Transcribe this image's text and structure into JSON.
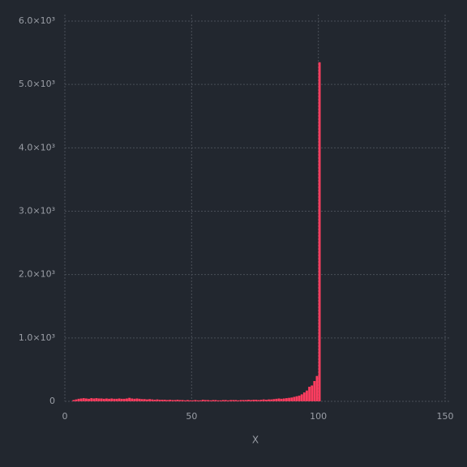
{
  "chart_data": {
    "type": "histogram",
    "x_label": "X",
    "color": "#ff3d5f",
    "bins": [
      3,
      4,
      5,
      6,
      7,
      8,
      9,
      10,
      11,
      12,
      13,
      14,
      15,
      16,
      17,
      18,
      19,
      20,
      21,
      22,
      23,
      24,
      25,
      26,
      27,
      28,
      29,
      30,
      31,
      32,
      33,
      34,
      35,
      36,
      37,
      38,
      39,
      40,
      41,
      42,
      43,
      44,
      45,
      46,
      47,
      48,
      49,
      50,
      51,
      52,
      53,
      54,
      55,
      56,
      57,
      58,
      59,
      60,
      61,
      62,
      63,
      64,
      65,
      66,
      67,
      68,
      69,
      70,
      71,
      72,
      73,
      74,
      75,
      76,
      77,
      78,
      79,
      80,
      81,
      82,
      83,
      84,
      85,
      86,
      87,
      88,
      89,
      90,
      91,
      92,
      93,
      94,
      95,
      96,
      97,
      98,
      99,
      100,
      101
    ],
    "counts": [
      20,
      30,
      40,
      45,
      50,
      45,
      40,
      50,
      45,
      50,
      45,
      45,
      40,
      45,
      40,
      45,
      40,
      40,
      45,
      40,
      40,
      45,
      55,
      45,
      40,
      45,
      40,
      35,
      35,
      30,
      35,
      30,
      25,
      30,
      25,
      25,
      25,
      20,
      25,
      20,
      20,
      25,
      20,
      20,
      15,
      20,
      15,
      15,
      20,
      15,
      15,
      25,
      20,
      20,
      15,
      20,
      20,
      15,
      15,
      20,
      20,
      15,
      20,
      20,
      20,
      15,
      20,
      20,
      20,
      25,
      20,
      25,
      25,
      20,
      25,
      30,
      25,
      30,
      30,
      35,
      40,
      45,
      40,
      45,
      50,
      55,
      60,
      70,
      80,
      90,
      110,
      140,
      170,
      230,
      250,
      320,
      400,
      5350
    ],
    "xlim": [
      0,
      150
    ],
    "xticks": [
      0,
      50,
      100,
      150
    ],
    "ylim": [
      0,
      6000
    ],
    "yticks": [
      0,
      {
        "value": 1000,
        "label": "1.0×10³"
      },
      {
        "value": 2000,
        "label": "2.0×10³"
      },
      {
        "value": 3000,
        "label": "3.0×10³"
      },
      {
        "value": 4000,
        "label": "4.0×10³"
      },
      {
        "value": 5000,
        "label": "5.0×10³"
      },
      {
        "value": 6000,
        "label": "6.0×10³"
      }
    ],
    "grid": true
  }
}
